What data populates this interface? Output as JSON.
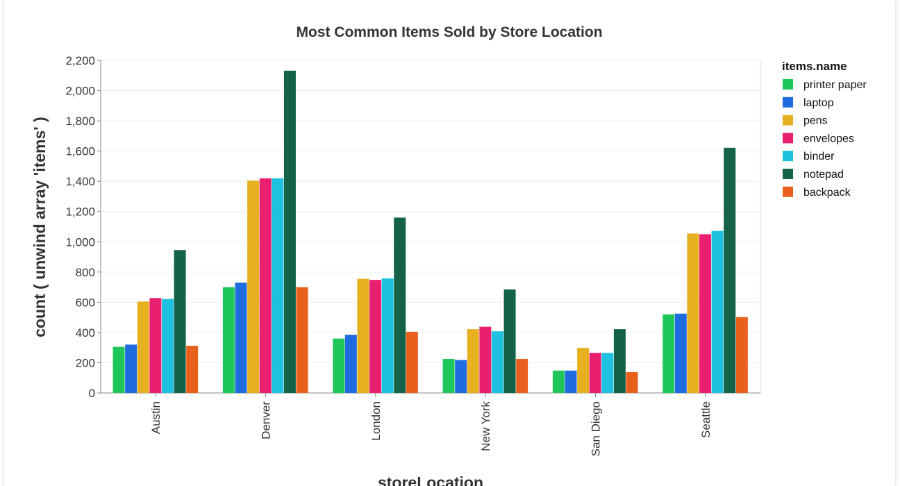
{
  "chart_data": {
    "type": "bar",
    "title": "Most Common Items Sold by Store Location",
    "xlabel": "storeLocation",
    "ylabel": "count ( unwind array 'items' )",
    "ylim": [
      0,
      2200
    ],
    "yticks": [
      "0",
      "200",
      "400",
      "600",
      "800",
      "1,000",
      "1,200",
      "1,400",
      "1,600",
      "1,800",
      "2,000",
      "2,200"
    ],
    "ytick_values": [
      0,
      200,
      400,
      600,
      800,
      1000,
      1200,
      1400,
      1600,
      1800,
      2000,
      2200
    ],
    "grid": true,
    "legend_title": "items.name",
    "legend_position": "right",
    "categories": [
      "Austin",
      "Denver",
      "London",
      "New York",
      "San Diego",
      "Seattle"
    ],
    "series": [
      {
        "name": "printer paper",
        "color": "#1fc75a",
        "values": [
          305,
          700,
          360,
          225,
          148,
          520
        ]
      },
      {
        "name": "laptop",
        "color": "#1f6be0",
        "values": [
          320,
          730,
          385,
          218,
          148,
          525
        ]
      },
      {
        "name": "pens",
        "color": "#e6b020",
        "values": [
          605,
          1405,
          755,
          422,
          298,
          1055
        ]
      },
      {
        "name": "envelopes",
        "color": "#e81e6f",
        "values": [
          628,
          1420,
          748,
          438,
          265,
          1050
        ]
      },
      {
        "name": "binder",
        "color": "#1ec2e0",
        "values": [
          622,
          1420,
          758,
          408,
          265,
          1072
        ]
      },
      {
        "name": "notepad",
        "color": "#136249",
        "values": [
          945,
          2132,
          1160,
          685,
          422,
          1622
        ]
      },
      {
        "name": "backpack",
        "color": "#e8601c",
        "values": [
          312,
          700,
          405,
          225,
          138,
          502
        ]
      }
    ]
  }
}
